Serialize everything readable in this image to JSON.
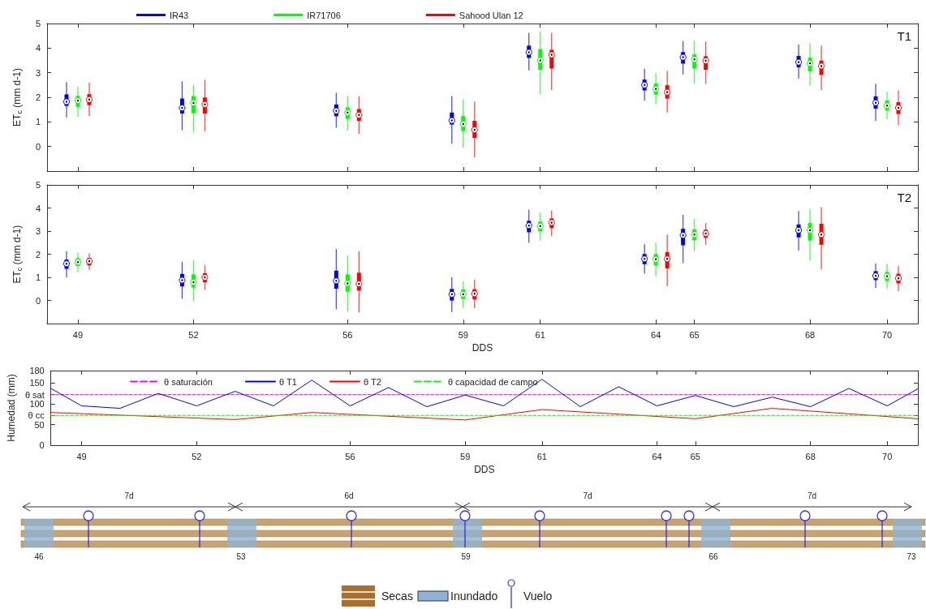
{
  "chart_data": [
    {
      "type": "box",
      "ylabel": "ET$_{c}$ (mm d-1)",
      "annotations": [
        "T1"
      ],
      "x": [
        49,
        52,
        56,
        59,
        61,
        64,
        65,
        68,
        70
      ],
      "xlim": [
        48.2,
        70.8
      ],
      "xticks": [
        49,
        52,
        56,
        59,
        61,
        64,
        65,
        68,
        70
      ],
      "ylim": [
        -1,
        5
      ],
      "yticks": [
        0,
        1,
        2,
        3,
        4,
        5
      ],
      "tick_labels": "y",
      "grid": false,
      "legend": "top",
      "series": [
        {
          "name": "IR43",
          "color": "#0000ff",
          "boxes": [
            {
              "low": 1.18,
              "q1": 1.65,
              "median": 1.82,
              "q3": 2.12,
              "high": 2.62
            },
            {
              "low": 0.66,
              "q1": 1.34,
              "median": 1.57,
              "q3": 1.95,
              "high": 2.65
            },
            {
              "low": 0.76,
              "q1": 1.23,
              "median": 1.45,
              "q3": 1.71,
              "high": 2.18
            },
            {
              "low": 0.12,
              "q1": 0.89,
              "median": 1.06,
              "q3": 1.38,
              "high": 2.04
            },
            {
              "low": 3.1,
              "q1": 3.6,
              "median": 3.83,
              "q3": 4.1,
              "high": 4.62
            },
            {
              "low": 1.87,
              "q1": 2.28,
              "median": 2.5,
              "q3": 2.72,
              "high": 3.16
            },
            {
              "low": 2.93,
              "q1": 3.37,
              "median": 3.63,
              "q3": 3.84,
              "high": 4.29
            },
            {
              "low": 2.76,
              "q1": 3.22,
              "median": 3.43,
              "q3": 3.68,
              "high": 4.15
            },
            {
              "low": 1.04,
              "q1": 1.54,
              "median": 1.78,
              "q3": 2.04,
              "high": 2.55
            }
          ]
        },
        {
          "name": "IR71706",
          "color": "#00ff00",
          "boxes": [
            {
              "low": 1.21,
              "q1": 1.61,
              "median": 1.87,
              "q3": 2.06,
              "high": 2.43
            },
            {
              "low": 0.57,
              "q1": 1.35,
              "median": 1.77,
              "q3": 2.05,
              "high": 2.5
            },
            {
              "low": 0.65,
              "q1": 1.12,
              "median": 1.38,
              "q3": 1.59,
              "high": 2.04
            },
            {
              "low": -0.04,
              "q1": 0.63,
              "median": 0.91,
              "q3": 1.24,
              "high": 1.91
            },
            {
              "low": 2.12,
              "q1": 3.12,
              "median": 3.5,
              "q3": 3.96,
              "high": 4.67
            },
            {
              "low": 1.7,
              "q1": 2.11,
              "median": 2.34,
              "q3": 2.56,
              "high": 2.98
            },
            {
              "low": 2.56,
              "q1": 3.17,
              "median": 3.54,
              "q3": 3.74,
              "high": 4.3
            },
            {
              "low": 2.48,
              "q1": 3.06,
              "median": 3.38,
              "q3": 3.61,
              "high": 4.2
            },
            {
              "low": 1.12,
              "q1": 1.46,
              "median": 1.66,
              "q3": 1.87,
              "high": 2.22
            }
          ]
        },
        {
          "name": "Sahood Ulan 12",
          "color": "#ff0000",
          "boxes": [
            {
              "low": 1.23,
              "q1": 1.68,
              "median": 1.91,
              "q3": 2.13,
              "high": 2.59
            },
            {
              "low": 0.61,
              "q1": 1.34,
              "median": 1.71,
              "q3": 1.99,
              "high": 2.71
            },
            {
              "low": 0.52,
              "q1": 1.04,
              "median": 1.28,
              "q3": 1.52,
              "high": 2.04
            },
            {
              "low": -0.44,
              "q1": 0.35,
              "median": 0.68,
              "q3": 1.04,
              "high": 1.83
            },
            {
              "low": 2.29,
              "q1": 3.17,
              "median": 3.73,
              "q3": 3.93,
              "high": 4.62
            },
            {
              "low": 1.38,
              "q1": 1.95,
              "median": 2.21,
              "q3": 2.49,
              "high": 3.07
            },
            {
              "low": 2.54,
              "q1": 3.12,
              "median": 3.49,
              "q3": 3.67,
              "high": 4.26
            },
            {
              "low": 2.3,
              "q1": 2.91,
              "median": 3.27,
              "q3": 3.49,
              "high": 4.1
            },
            {
              "low": 0.87,
              "q1": 1.32,
              "median": 1.57,
              "q3": 1.8,
              "high": 2.28
            }
          ]
        }
      ]
    },
    {
      "type": "box",
      "ylabel": "ET$_{c}$ (mm d-1)",
      "xlabel": "DDS",
      "annotations": [
        "T2"
      ],
      "x": [
        49,
        52,
        56,
        59,
        61,
        64,
        65,
        68,
        70
      ],
      "xlim": [
        48.2,
        70.8
      ],
      "xticks": [
        49,
        52,
        56,
        59,
        61,
        64,
        65,
        68,
        70
      ],
      "ylim": [
        -1,
        5
      ],
      "yticks": [
        0,
        1,
        2,
        3,
        4,
        5
      ],
      "grid": false,
      "series": [
        {
          "color": "#0000ff",
          "boxes": [
            {
              "low": 1.0,
              "q1": 1.37,
              "median": 1.59,
              "q3": 1.77,
              "high": 2.13
            },
            {
              "low": 0.07,
              "q1": 0.61,
              "median": 0.88,
              "q3": 1.15,
              "high": 1.68
            },
            {
              "low": -0.37,
              "q1": 0.51,
              "median": 0.85,
              "q3": 1.29,
              "high": 2.22
            },
            {
              "low": -0.5,
              "q1": 0.0,
              "median": 0.27,
              "q3": 0.5,
              "high": 1.0
            },
            {
              "low": 2.49,
              "q1": 2.95,
              "median": 3.24,
              "q3": 3.45,
              "high": 3.93
            },
            {
              "low": 1.16,
              "q1": 1.57,
              "median": 1.8,
              "q3": 2.01,
              "high": 2.43
            },
            {
              "low": 1.62,
              "q1": 2.39,
              "median": 2.82,
              "q3": 3.1,
              "high": 3.7
            },
            {
              "low": 2.16,
              "q1": 2.73,
              "median": 3.04,
              "q3": 3.29,
              "high": 3.87
            },
            {
              "low": 0.55,
              "q1": 0.88,
              "median": 1.07,
              "q3": 1.27,
              "high": 1.6
            }
          ]
        },
        {
          "color": "#00ff00",
          "boxes": [
            {
              "low": 1.22,
              "q1": 1.49,
              "median": 1.66,
              "q3": 1.83,
              "high": 2.07
            },
            {
              "low": -0.02,
              "q1": 0.56,
              "median": 0.79,
              "q3": 1.13,
              "high": 1.74
            },
            {
              "low": -0.49,
              "q1": 0.38,
              "median": 0.74,
              "q3": 1.13,
              "high": 1.95
            },
            {
              "low": -0.32,
              "q1": 0.06,
              "median": 0.27,
              "q3": 0.48,
              "high": 0.84
            },
            {
              "low": 2.6,
              "q1": 2.99,
              "median": 3.22,
              "q3": 3.41,
              "high": 3.8
            },
            {
              "low": 1.04,
              "q1": 1.52,
              "median": 1.78,
              "q3": 2.01,
              "high": 2.5
            },
            {
              "low": 2.13,
              "q1": 2.6,
              "median": 2.85,
              "q3": 3.07,
              "high": 3.54
            },
            {
              "low": 1.72,
              "q1": 2.59,
              "median": 3.04,
              "q3": 3.35,
              "high": 3.96
            },
            {
              "low": 0.51,
              "q1": 0.84,
              "median": 1.05,
              "q3": 1.24,
              "high": 1.59
            }
          ]
        },
        {
          "color": "#ff0000",
          "boxes": [
            {
              "low": 1.33,
              "q1": 1.52,
              "median": 1.7,
              "q3": 1.84,
              "high": 2.04
            },
            {
              "low": 0.46,
              "q1": 0.79,
              "median": 1.0,
              "q3": 1.18,
              "high": 1.52
            },
            {
              "low": -0.51,
              "q1": 0.43,
              "median": 0.72,
              "q3": 1.2,
              "high": 2.13
            },
            {
              "low": -0.34,
              "q1": 0.05,
              "median": 0.29,
              "q3": 0.49,
              "high": 0.91
            },
            {
              "low": 2.78,
              "q1": 3.13,
              "median": 3.37,
              "q3": 3.55,
              "high": 3.89
            },
            {
              "low": 0.62,
              "q1": 1.39,
              "median": 1.8,
              "q3": 2.09,
              "high": 2.84
            },
            {
              "low": 2.41,
              "q1": 2.71,
              "median": 2.9,
              "q3": 3.06,
              "high": 3.35
            },
            {
              "low": 1.34,
              "q1": 2.41,
              "median": 2.85,
              "q3": 3.32,
              "high": 4.04
            },
            {
              "low": 0.41,
              "q1": 0.74,
              "median": 0.96,
              "q3": 1.16,
              "high": 1.49
            }
          ]
        }
      ]
    },
    {
      "type": "line",
      "ylabel": "Humedad (mm)",
      "xlabel": "DDS",
      "xlim": [
        48.2,
        70.8
      ],
      "xticks": [
        49,
        52,
        56,
        59,
        61,
        64,
        65,
        68,
        70
      ],
      "ylim": [
        0,
        180
      ],
      "yticks": [
        0,
        50,
        {
          "value": 72,
          "label": "θ cc"
        },
        100,
        {
          "value": 122,
          "label": "θ sat"
        },
        150,
        180
      ],
      "grid": false,
      "legend": "top",
      "marker": "none",
      "series": [
        {
          "name": "θ saturación",
          "color": "#ff00ff",
          "line_style": "dashed",
          "x": [
            48.2,
            70.8
          ],
          "values": [
            122,
            122
          ]
        },
        {
          "name": "θ T1",
          "color": "#0000ff",
          "line_style": "solid",
          "x": [
            48.2,
            49,
            50,
            51,
            52,
            53,
            54,
            55,
            56,
            57,
            58,
            59,
            60,
            61,
            62,
            63,
            64,
            65,
            66,
            67,
            68,
            69,
            70,
            70.8
          ],
          "values": [
            137,
            95,
            89,
            125,
            95,
            130,
            95,
            157,
            95,
            139,
            93,
            121,
            95,
            159,
            93,
            141,
            95,
            120,
            93,
            116,
            93,
            137,
            95,
            136
          ]
        },
        {
          "name": "θ T2",
          "color": "#ff0000",
          "line_style": "solid",
          "x": [
            48.2,
            53,
            55,
            59,
            61,
            65,
            67,
            70.8
          ],
          "values": [
            79,
            62,
            79,
            61,
            86,
            64,
            89,
            64
          ]
        },
        {
          "name": "θ capacidad de campo",
          "color": "#00ff00",
          "line_style": "dashed",
          "x": [
            48.2,
            70.8
          ],
          "values": [
            72,
            72
          ]
        }
      ]
    },
    {
      "type": "other",
      "annotations": [
        "7d",
        "6d",
        "7d",
        "7d",
        "46",
        "53",
        "59",
        "66",
        "73",
        "Secas",
        "Inundado",
        "Vuelo"
      ]
    }
  ]
}
